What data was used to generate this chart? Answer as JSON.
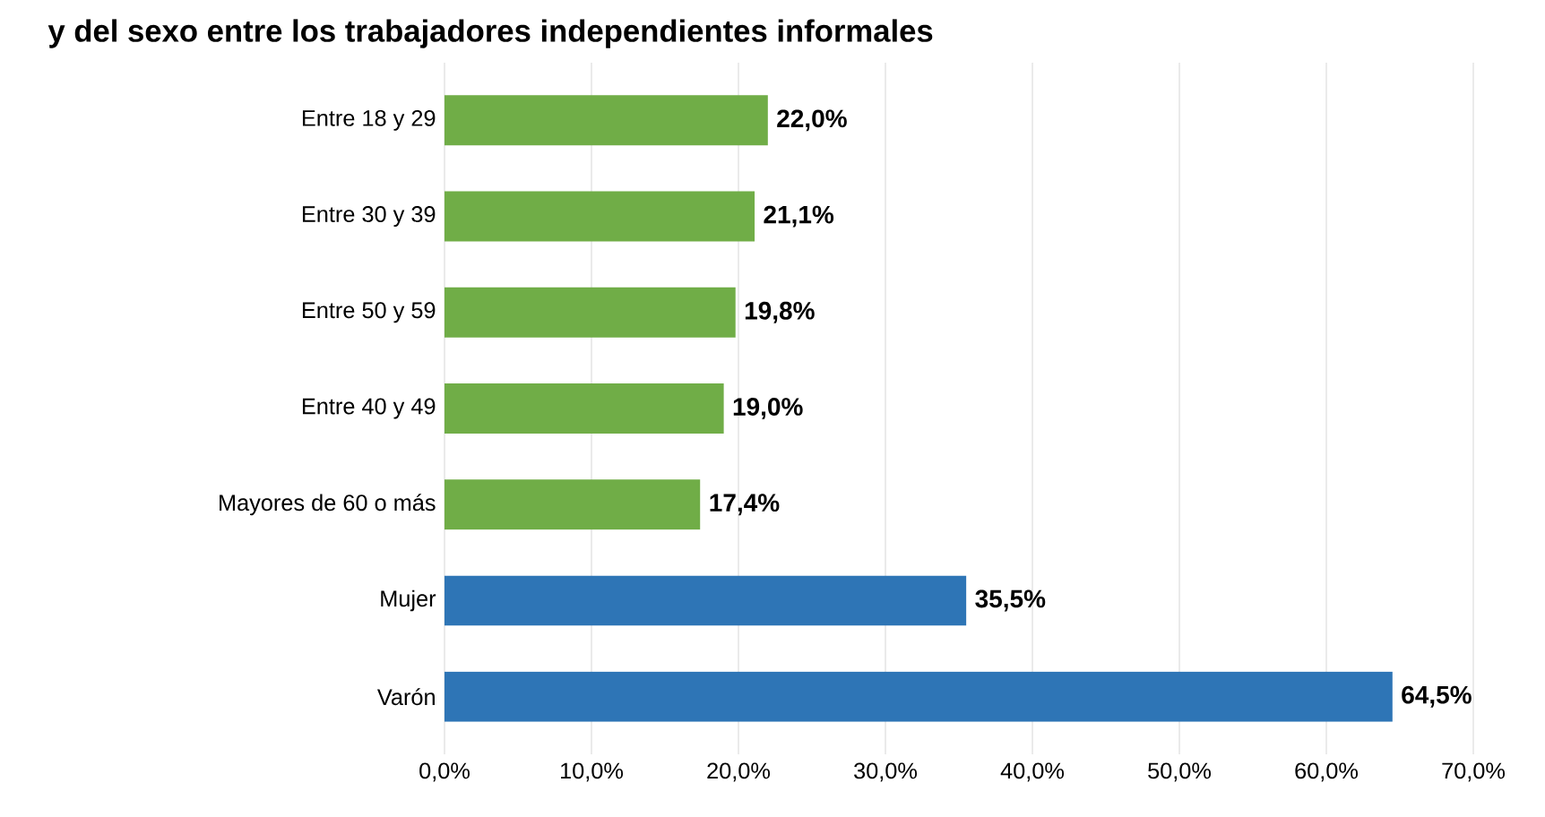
{
  "chart_data": {
    "type": "bar",
    "orientation": "horizontal",
    "title": "y del sexo entre los trabajadores independientes informales",
    "categories": [
      "Entre 18 y 29",
      "Entre 30 y 39",
      "Entre 50 y 59",
      "Entre 40 y 49",
      "Mayores de 60 o más",
      "Mujer",
      "Varón"
    ],
    "values": [
      22.0,
      21.1,
      19.8,
      19.0,
      17.4,
      35.5,
      64.5
    ],
    "value_labels": [
      "22,0%",
      "21,1%",
      "19,8%",
      "19,0%",
      "17,4%",
      "35,5%",
      "64,5%"
    ],
    "colors": [
      "#70ad47",
      "#70ad47",
      "#70ad47",
      "#70ad47",
      "#70ad47",
      "#2e75b6",
      "#2e75b6"
    ],
    "xlim": [
      0,
      70
    ],
    "xticks": [
      {
        "value": 0,
        "label": "0,0%"
      },
      {
        "value": 10,
        "label": "10,0%"
      },
      {
        "value": 20,
        "label": "20,0%"
      },
      {
        "value": 30,
        "label": "30,0%"
      },
      {
        "value": 40,
        "label": "40,0%"
      },
      {
        "value": 50,
        "label": "50,0%"
      },
      {
        "value": 60,
        "label": "60,0%"
      },
      {
        "value": 70,
        "label": "70,0%"
      }
    ],
    "grid": "x"
  }
}
